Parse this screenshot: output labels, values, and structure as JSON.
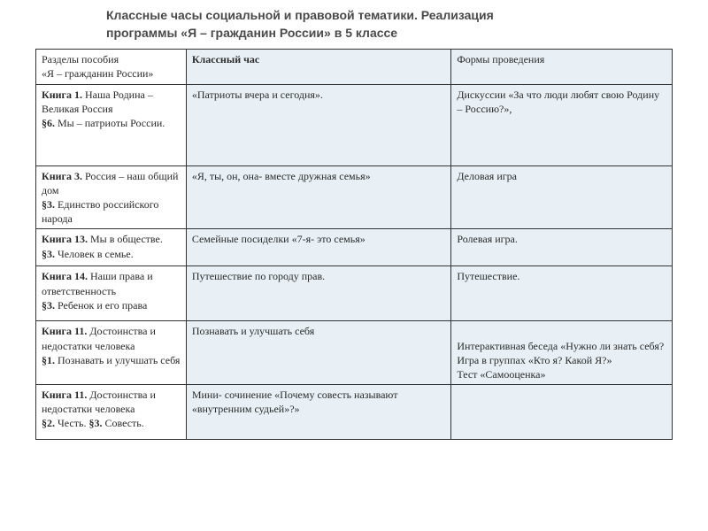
{
  "title": {
    "line1": "Классные часы социальной и правовой тематики. Реализация",
    "line2": "программы  «Я – гражданин России» в 5 классе"
  },
  "table": {
    "header": {
      "col1a": "Разделы пособия",
      "col1b": "«Я – гражданин России»",
      "col2": "Классный час",
      "col3": "Формы проведения"
    },
    "rows": [
      {
        "c1_bold": "Книга 1.",
        "c1_rest": " Наша Родина – Великая Россия",
        "c1_sub_bold": "§6.",
        "c1_sub_rest": " Мы – патриоты России.",
        "c2": "«Патриоты вчера и сегодня».",
        "c3": "Дискуссии «За что люди любят свою Родину – Россию?»,"
      },
      {
        "c1_bold": "Книга 3.",
        "c1_rest": " Россия – наш общий дом",
        "c1_sub_bold": "§3.",
        "c1_sub_rest": " Единство российского народа",
        "c2": "«Я, ты, он, она- вместе дружная семья»",
        "c3": "Деловая игра"
      },
      {
        "c1_bold": "Книга 13.",
        "c1_rest": " Мы в обществе.",
        "c1_sub_bold": "§3.",
        "c1_sub_rest": " Человек в семье.",
        "c2": "Семейные посиделки «7-я- это семья»",
        "c3": "Ролевая игра."
      },
      {
        "c1_bold": "Книга 14.",
        "c1_rest": " Наши права и ответственность",
        "c1_sub_bold": "§3.",
        "c1_sub_rest": " Ребенок и его права",
        "c2": "Путешествие по городу прав.",
        "c3": "Путешествие."
      },
      {
        "c1_bold": "Книга 11.",
        "c1_rest": " Достоинства и недостатки человека",
        "c1_sub_bold": "§1.",
        "c1_sub_rest": " Познавать и улучшать себя",
        "c2": "Познавать и улучшать себя",
        "c3": "Интерактивная беседа  «Нужно ли знать себя? Игра в группах «Кто я? Какой Я?»\nТест «Самооценка»"
      },
      {
        "c1_bold": "Книга 11.",
        "c1_rest": " Достоинства и недостатки человека",
        "c1_sub_bold": "§2.",
        "c1_sub_mid": " Честь. ",
        "c1_sub_bold2": "§3.",
        "c1_sub_rest": " Совесть.",
        "c2": "Мини- сочинение «Почему совесть называют «внутренним судьей»?»",
        "c3": ""
      }
    ]
  }
}
